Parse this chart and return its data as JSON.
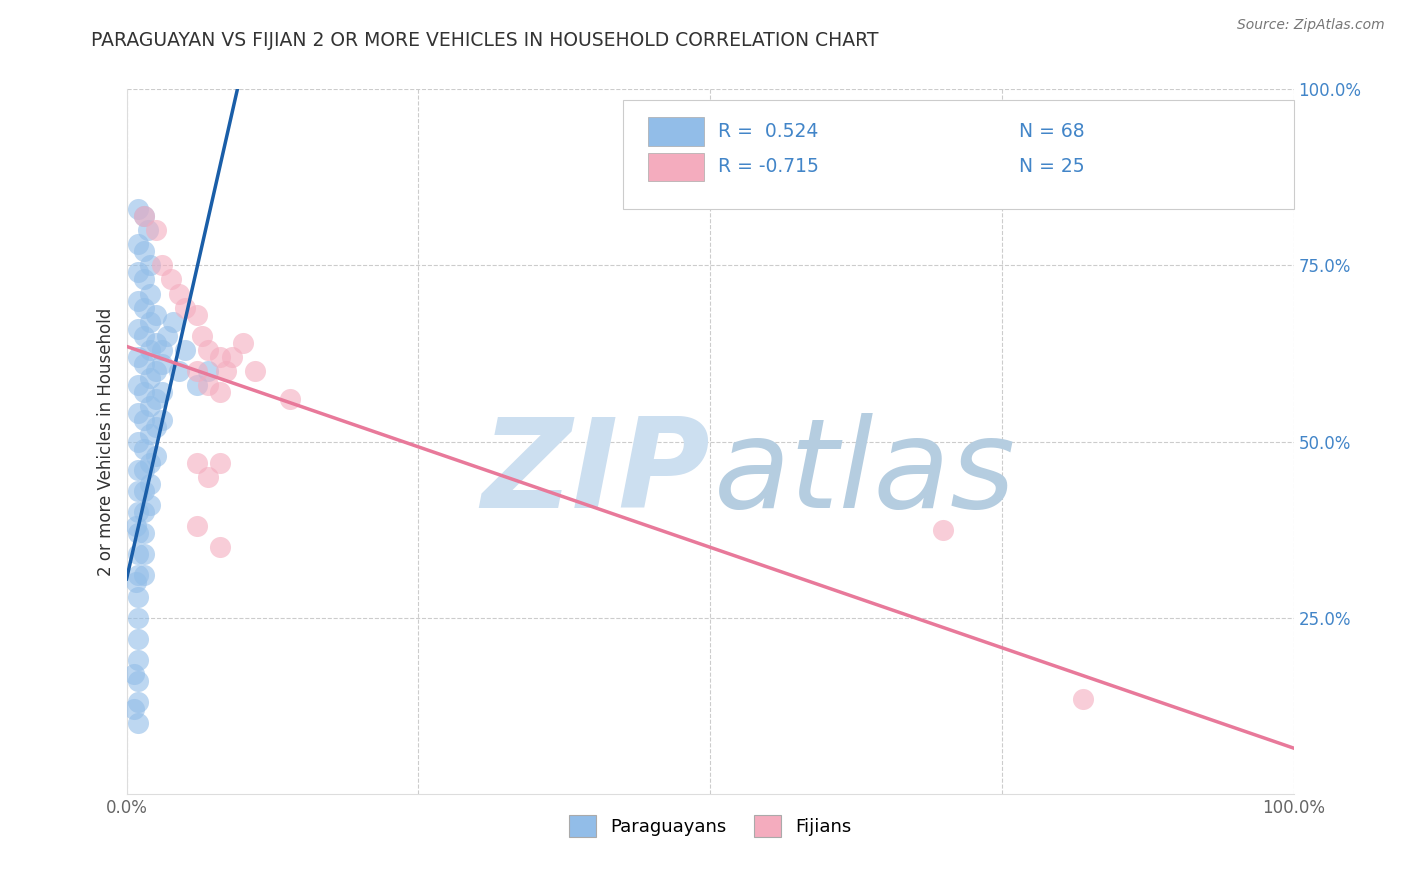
{
  "title": "PARAGUAYAN VS FIJIAN 2 OR MORE VEHICLES IN HOUSEHOLD CORRELATION CHART",
  "source": "Source: ZipAtlas.com",
  "ylabel": "2 or more Vehicles in Household",
  "xlim": [
    0.0,
    1.0
  ],
  "ylim": [
    0.0,
    1.0
  ],
  "xticks": [
    0.0,
    0.25,
    0.5,
    0.75,
    1.0
  ],
  "yticks": [
    0.25,
    0.5,
    0.75,
    1.0
  ],
  "xticklabels": [
    "0.0%",
    "",
    "",
    "",
    "100.0%"
  ],
  "ytick_labels": [
    "25.0%",
    "50.0%",
    "75.0%",
    "100.0%"
  ],
  "paraguayan_R": "0.524",
  "paraguayan_N": "68",
  "fijian_R": "-0.715",
  "fijian_N": "25",
  "blue_scatter_color": "#92BDE8",
  "pink_scatter_color": "#F4ACBE",
  "blue_line_color": "#1A5EA8",
  "pink_line_color": "#E8799A",
  "title_color": "#333333",
  "source_color": "#777777",
  "tick_color_y": "#4285C8",
  "tick_color_x": "#666666",
  "legend_text_color": "#4285C8",
  "watermark_zip_color": "#CCDFF0",
  "watermark_atlas_color": "#B5CDE0",
  "paraguayan_scatter": [
    [
      0.01,
      0.83
    ],
    [
      0.015,
      0.82
    ],
    [
      0.018,
      0.8
    ],
    [
      0.01,
      0.78
    ],
    [
      0.015,
      0.77
    ],
    [
      0.01,
      0.74
    ],
    [
      0.015,
      0.73
    ],
    [
      0.02,
      0.75
    ],
    [
      0.01,
      0.7
    ],
    [
      0.015,
      0.69
    ],
    [
      0.02,
      0.71
    ],
    [
      0.01,
      0.66
    ],
    [
      0.015,
      0.65
    ],
    [
      0.02,
      0.67
    ],
    [
      0.025,
      0.68
    ],
    [
      0.01,
      0.62
    ],
    [
      0.015,
      0.61
    ],
    [
      0.02,
      0.63
    ],
    [
      0.025,
      0.64
    ],
    [
      0.01,
      0.58
    ],
    [
      0.015,
      0.57
    ],
    [
      0.02,
      0.59
    ],
    [
      0.025,
      0.6
    ],
    [
      0.03,
      0.61
    ],
    [
      0.01,
      0.54
    ],
    [
      0.015,
      0.53
    ],
    [
      0.02,
      0.55
    ],
    [
      0.025,
      0.56
    ],
    [
      0.03,
      0.57
    ],
    [
      0.01,
      0.5
    ],
    [
      0.015,
      0.49
    ],
    [
      0.02,
      0.51
    ],
    [
      0.025,
      0.52
    ],
    [
      0.03,
      0.53
    ],
    [
      0.01,
      0.46
    ],
    [
      0.015,
      0.46
    ],
    [
      0.02,
      0.47
    ],
    [
      0.025,
      0.48
    ],
    [
      0.01,
      0.43
    ],
    [
      0.015,
      0.43
    ],
    [
      0.02,
      0.44
    ],
    [
      0.01,
      0.4
    ],
    [
      0.015,
      0.4
    ],
    [
      0.02,
      0.41
    ],
    [
      0.01,
      0.37
    ],
    [
      0.015,
      0.37
    ],
    [
      0.01,
      0.34
    ],
    [
      0.015,
      0.34
    ],
    [
      0.01,
      0.31
    ],
    [
      0.015,
      0.31
    ],
    [
      0.01,
      0.28
    ],
    [
      0.01,
      0.25
    ],
    [
      0.01,
      0.22
    ],
    [
      0.01,
      0.19
    ],
    [
      0.01,
      0.16
    ],
    [
      0.01,
      0.13
    ],
    [
      0.01,
      0.1
    ],
    [
      0.008,
      0.38
    ],
    [
      0.008,
      0.3
    ],
    [
      0.006,
      0.17
    ],
    [
      0.006,
      0.12
    ],
    [
      0.03,
      0.63
    ],
    [
      0.035,
      0.65
    ],
    [
      0.04,
      0.67
    ],
    [
      0.045,
      0.6
    ],
    [
      0.05,
      0.63
    ],
    [
      0.06,
      0.58
    ],
    [
      0.07,
      0.6
    ]
  ],
  "fijian_scatter": [
    [
      0.015,
      0.82
    ],
    [
      0.025,
      0.8
    ],
    [
      0.03,
      0.75
    ],
    [
      0.038,
      0.73
    ],
    [
      0.045,
      0.71
    ],
    [
      0.05,
      0.69
    ],
    [
      0.06,
      0.68
    ],
    [
      0.065,
      0.65
    ],
    [
      0.07,
      0.63
    ],
    [
      0.08,
      0.62
    ],
    [
      0.085,
      0.6
    ],
    [
      0.09,
      0.62
    ],
    [
      0.1,
      0.64
    ],
    [
      0.11,
      0.6
    ],
    [
      0.06,
      0.6
    ],
    [
      0.07,
      0.58
    ],
    [
      0.08,
      0.57
    ],
    [
      0.06,
      0.47
    ],
    [
      0.07,
      0.45
    ],
    [
      0.08,
      0.47
    ],
    [
      0.06,
      0.38
    ],
    [
      0.08,
      0.35
    ],
    [
      0.7,
      0.375
    ],
    [
      0.82,
      0.135
    ],
    [
      0.14,
      0.56
    ]
  ],
  "paraguayan_trend_x": [
    0.0,
    0.095
  ],
  "paraguayan_trend_y": [
    0.305,
    1.0
  ],
  "fijian_trend_x": [
    0.0,
    1.0
  ],
  "fijian_trend_y": [
    0.635,
    0.065
  ]
}
